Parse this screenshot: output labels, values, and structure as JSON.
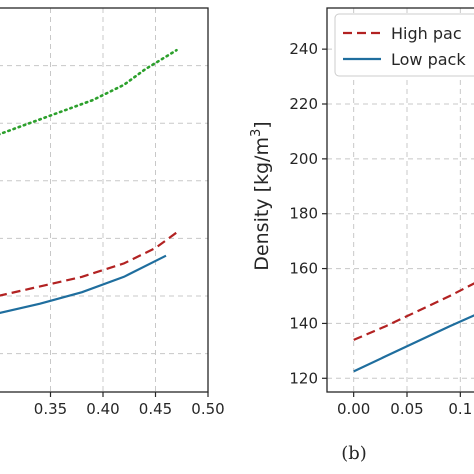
{
  "chart_data": [
    {
      "type": "line",
      "panel": "a",
      "title": "",
      "xlabel": "",
      "ylabel": "",
      "xlim": [
        0.3,
        0.5
      ],
      "ylim": [
        0,
        1
      ],
      "x_ticks": [
        "0.35",
        "0.40",
        "0.45",
        "0.50"
      ],
      "grid": true,
      "series": [
        {
          "style": "dotted",
          "color": "#2ca02c",
          "x": [
            0.3,
            0.33,
            0.36,
            0.39,
            0.42,
            0.44,
            0.47
          ],
          "y": [
            0.67,
            0.7,
            0.73,
            0.76,
            0.8,
            0.84,
            0.89
          ]
        },
        {
          "style": "dashed",
          "color": "#b22222",
          "x": [
            0.3,
            0.34,
            0.38,
            0.42,
            0.45,
            0.47
          ],
          "y": [
            0.25,
            0.275,
            0.3,
            0.335,
            0.375,
            0.415
          ]
        },
        {
          "style": "solid",
          "color": "#1f6e9e",
          "x": [
            0.3,
            0.34,
            0.38,
            0.42,
            0.46
          ],
          "y": [
            0.205,
            0.23,
            0.26,
            0.3,
            0.355
          ]
        }
      ]
    },
    {
      "type": "line",
      "panel": "b",
      "panel_label": "(b)",
      "title": "",
      "xlabel": "",
      "ylabel": "Density [kg/m",
      "ylabel_sup": "3",
      "ylabel_end": "]",
      "xlim": [
        -0.025,
        0.125
      ],
      "ylim": [
        115,
        255
      ],
      "x_ticks": [
        {
          "value": 0.0,
          "label": "0.00"
        },
        {
          "value": 0.05,
          "label": "0.05"
        },
        {
          "value": 0.1,
          "label": "0.1"
        }
      ],
      "y_ticks": [
        {
          "value": 120,
          "label": "120"
        },
        {
          "value": 140,
          "label": "140"
        },
        {
          "value": 160,
          "label": "160"
        },
        {
          "value": 180,
          "label": "180"
        },
        {
          "value": 200,
          "label": "200"
        },
        {
          "value": 220,
          "label": "220"
        },
        {
          "value": 240,
          "label": "240"
        }
      ],
      "grid": true,
      "legend_placement": "top-right",
      "series": [
        {
          "name": "High pac",
          "style": "dashed",
          "color": "#b22222",
          "x": [
            0.0,
            0.03,
            0.06,
            0.09,
            0.125
          ],
          "y": [
            134,
            139,
            144.5,
            150,
            157
          ]
        },
        {
          "name": "Low pack",
          "style": "solid",
          "color": "#1f6e9e",
          "x": [
            0.0,
            0.03,
            0.06,
            0.09,
            0.125
          ],
          "y": [
            122.5,
            128,
            133.5,
            139,
            145
          ]
        }
      ]
    }
  ]
}
